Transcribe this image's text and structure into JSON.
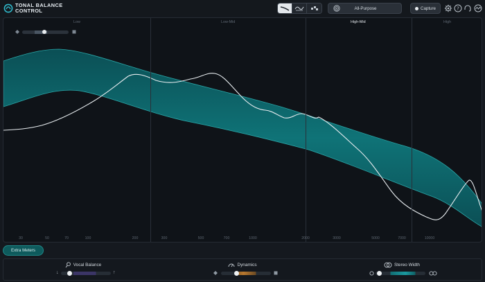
{
  "app": {
    "title_line1": "TONAL BALANCE",
    "title_line2": "CONTROL",
    "brand_color": "#2fb7c9"
  },
  "toolbar": {
    "view_buttons": [
      {
        "icon": "curve-view-icon",
        "active": true
      },
      {
        "icon": "eq-view-icon",
        "active": false
      },
      {
        "icon": "bars-view-icon",
        "active": false
      }
    ],
    "preset": {
      "icon": "target-icon",
      "label": "All-Purpose"
    },
    "capture_label": "Capture",
    "icons": [
      "gear-icon",
      "help-icon",
      "headphones-icon",
      "signal-icon"
    ]
  },
  "bands": {
    "labels": [
      "Low",
      "Low-Mid",
      "High-Mid",
      "High"
    ],
    "active": "High-Mid"
  },
  "freq_axis": [
    "30",
    "50",
    "70",
    "100",
    "200",
    "300",
    "500",
    "700",
    "1000",
    "2000",
    "3000",
    "5000",
    "7000",
    "10000"
  ],
  "extra_meters_label": "Extra Meters",
  "meters": {
    "vocal_balance": {
      "label": "Vocal Balance",
      "icon": "vocal-icon",
      "left_icon": "arrow-down-icon",
      "right_icon": "arrow-up-icon"
    },
    "dynamics": {
      "label": "Dynamics",
      "icon": "gauge-icon",
      "left_icon": "diamond-icon",
      "right_icon": "square-icon"
    },
    "stereo_width": {
      "label": "Stereo Width",
      "icon": "stereo-icon",
      "left_icon": "circle-icon",
      "right_icon": "double-circle-icon"
    }
  },
  "colors": {
    "band_fill": "#0f6a70",
    "band_edge": "#2aa7a8",
    "curve": "#e7ecef",
    "active_button": "#0e5a5c"
  }
}
